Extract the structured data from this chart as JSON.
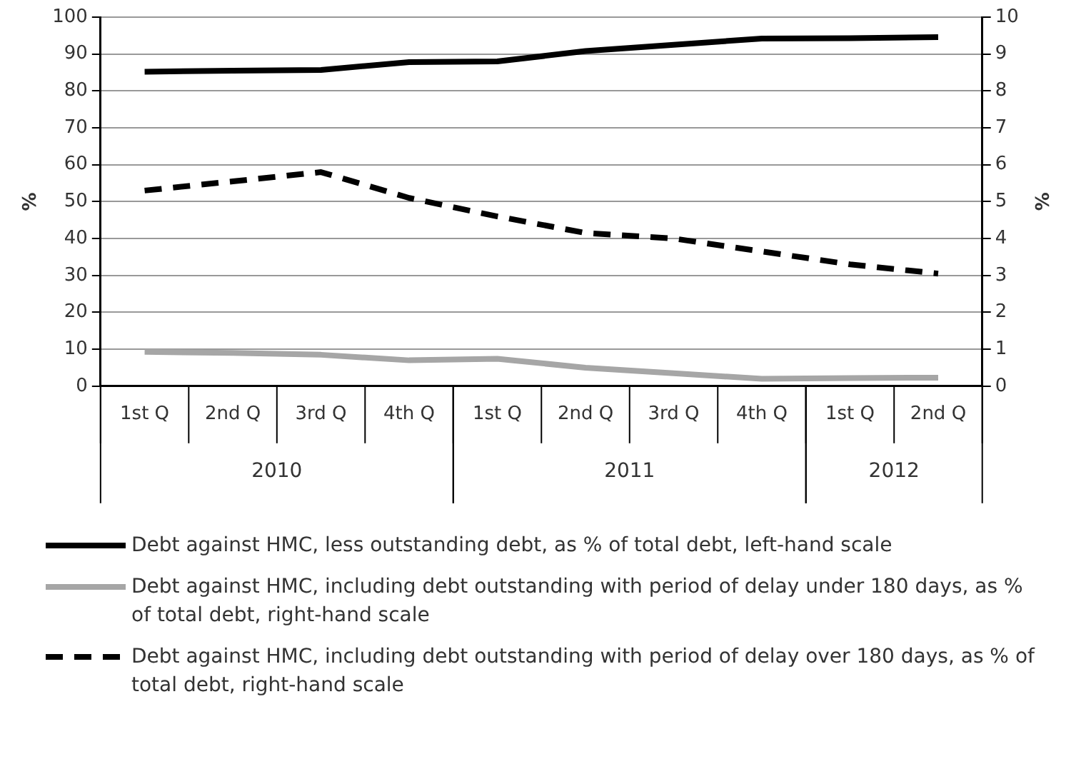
{
  "chart_data": {
    "type": "line",
    "ylabel": "%",
    "y2label": "%",
    "categories": [
      "1st Q",
      "2nd Q",
      "3rd Q",
      "4th Q",
      "1st Q",
      "2nd Q",
      "3rd Q",
      "4th Q",
      "1st Q",
      "2nd Q"
    ],
    "series": [
      {
        "name": "Debt against HMC, less outstanding debt, as % of total debt, left-hand scale",
        "color": "#000000",
        "line_style": "solid",
        "values": [
          85.2,
          85.5,
          85.7,
          87.8,
          88.0,
          90.8,
          92.5,
          94.2,
          94.3,
          94.6
        ]
      },
      {
        "name": "Debt against HMC, including debt outstanding with period of delay under 180 days, as % of total debt, right-hand scale",
        "color": "#a6a6a6",
        "line_style": "solid",
        "axis": "y2",
        "values": [
          0.93,
          0.9,
          0.85,
          0.7,
          0.74,
          0.5,
          0.35,
          0.2,
          0.22,
          0.23
        ]
      },
      {
        "name": "Debt against HMC, including debt outstanding with period of delay over 180 days, as % of total debt, right-hand scale",
        "color": "#000000",
        "line_style": "dashed",
        "axis": "y2",
        "values": [
          5.3,
          5.55,
          5.8,
          5.1,
          4.6,
          4.15,
          4.0,
          3.65,
          3.3,
          3.05
        ]
      }
    ],
    "annotations": [
      "2010",
      "2011",
      "2012"
    ],
    "ylim": [
      0,
      100
    ],
    "yticks": [
      0,
      10,
      20,
      30,
      40,
      50,
      60,
      70,
      80,
      90,
      100
    ],
    "y2lim": [
      0,
      10
    ],
    "y2ticks": [
      0,
      1,
      2,
      3,
      4,
      5,
      6,
      7,
      8,
      9,
      10
    ],
    "grid": "y",
    "legend": "bottom",
    "marker": "none"
  }
}
